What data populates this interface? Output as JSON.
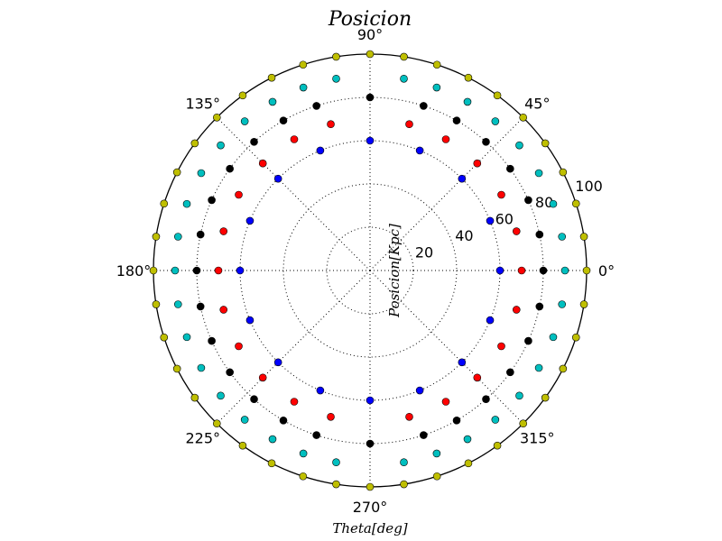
{
  "chart_data": {
    "type": "scatter",
    "projection": "polar",
    "title": "Posicion",
    "xlabel": "Theta[deg]",
    "ylabel": "Posicion[Kpc]",
    "rlim": [
      0,
      100
    ],
    "r_ticks": [
      20,
      40,
      60,
      80,
      100
    ],
    "r_tick_labels": [
      "20",
      "40",
      "60",
      "80",
      "100"
    ],
    "theta_ticks": [
      0,
      45,
      90,
      135,
      180,
      225,
      270,
      315
    ],
    "theta_tick_labels": [
      "0°",
      "45°",
      "90°",
      "135°",
      "180°",
      "225°",
      "270°",
      "315°"
    ],
    "grid": true,
    "series": [
      {
        "color": "#0000ff",
        "r": 60,
        "theta_deg": [
          0,
          22.5,
          45,
          67.5,
          90,
          112.5,
          135,
          157.5,
          180,
          202.5,
          225,
          247.5,
          270,
          292.5,
          315,
          337.5
        ]
      },
      {
        "color": "#ff0000",
        "r": 70,
        "theta_deg": [
          0,
          15,
          30,
          45,
          60,
          75,
          105,
          120,
          135,
          150,
          165,
          180,
          195,
          210,
          225,
          240,
          255,
          285,
          300,
          315,
          330,
          345
        ]
      },
      {
        "color": "#000000",
        "r": 80,
        "theta_deg": [
          0,
          12,
          24,
          36,
          48,
          60,
          72,
          90,
          108,
          120,
          132,
          144,
          156,
          168,
          180,
          192,
          204,
          216,
          228,
          240,
          252,
          270,
          288,
          300,
          312,
          324,
          336,
          348
        ]
      },
      {
        "color": "#00bfbf",
        "r": 90,
        "theta_deg": [
          0,
          10,
          20,
          30,
          40,
          50,
          60,
          70,
          80,
          100,
          110,
          120,
          130,
          140,
          150,
          160,
          170,
          180,
          190,
          200,
          210,
          220,
          230,
          240,
          250,
          260,
          280,
          290,
          300,
          310,
          320,
          330,
          340,
          350
        ]
      },
      {
        "color": "#bfbf00",
        "r": 100,
        "theta_deg": [
          0,
          9,
          18,
          27,
          36,
          45,
          54,
          63,
          72,
          81,
          90,
          99,
          108,
          117,
          126,
          135,
          144,
          153,
          162,
          171,
          180,
          189,
          198,
          207,
          216,
          225,
          234,
          243,
          252,
          261,
          270,
          279,
          288,
          297,
          306,
          315,
          324,
          333,
          342,
          351
        ]
      }
    ]
  }
}
